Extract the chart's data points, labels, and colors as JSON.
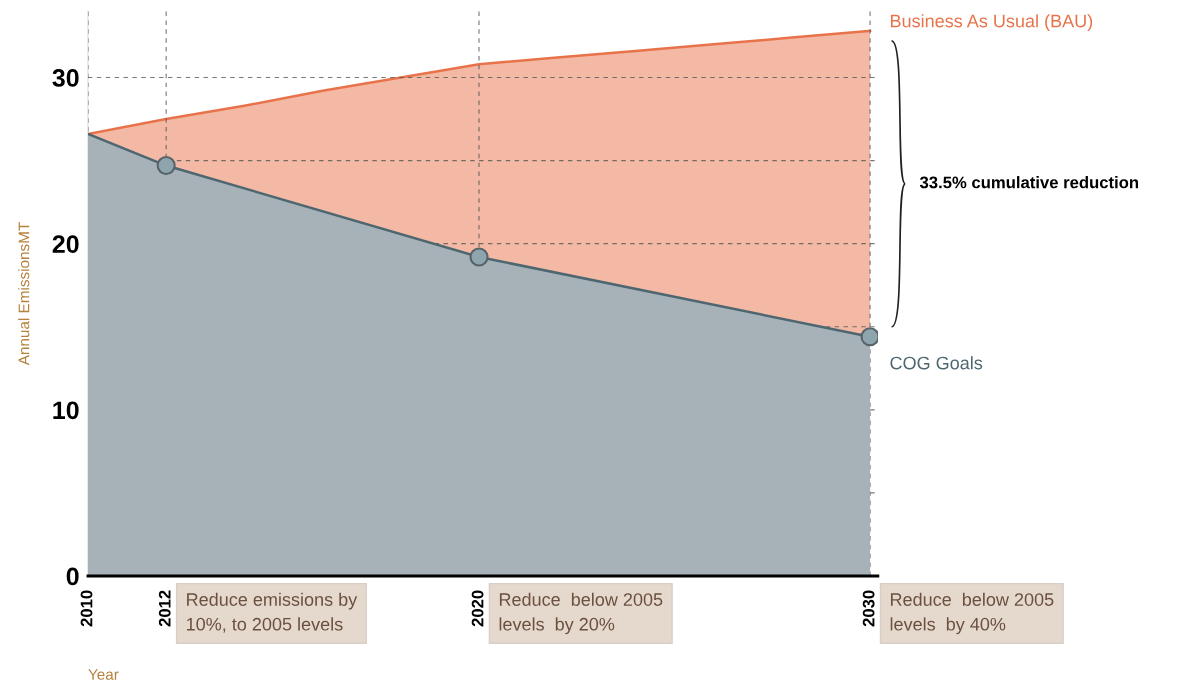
{
  "chart_data": {
    "type": "area",
    "xlabel": "Year",
    "ylabel": "Annual EmissionsMT",
    "xlim": [
      2010,
      2030.2
    ],
    "ylim": [
      0,
      34
    ],
    "xticks": [
      2010,
      2012,
      2020,
      2030
    ],
    "yticks": [
      0,
      {
        "value": 5,
        "label": null
      },
      10,
      {
        "value": 15,
        "label": null
      },
      20,
      {
        "value": 25,
        "label": null
      },
      30
    ],
    "grid": true,
    "legend": false,
    "series": [
      {
        "name": "Business As Usual (BAU)",
        "color": "#e8734a",
        "x": [
          2010,
          2012,
          2014,
          2016,
          2018,
          2020,
          2022,
          2024,
          2026,
          2028,
          2030
        ],
        "values": [
          26.6,
          27.5,
          28.3,
          29.2,
          30.0,
          30.8,
          31.2,
          31.6,
          32.0,
          32.4,
          32.8
        ]
      },
      {
        "name": "COG Goals",
        "color": "#4d6670",
        "x": [
          2010,
          2012,
          2020,
          2030
        ],
        "values": [
          26.6,
          24.7,
          19.2,
          14.4
        ]
      },
      {
        "type": "scatter",
        "marker": "circle",
        "color": "#8fa5ad",
        "x": [
          2012,
          2020,
          2030
        ],
        "values": [
          24.7,
          19.2,
          14.4
        ]
      }
    ],
    "annotations": [
      "33.5% cumulative reduction",
      "Reduce emissions by\n10%, to 2005 levels",
      "Reduce  below 2005\nlevels  by 20%",
      "Reduce  below 2005\nlevels  by 40%"
    ]
  }
}
